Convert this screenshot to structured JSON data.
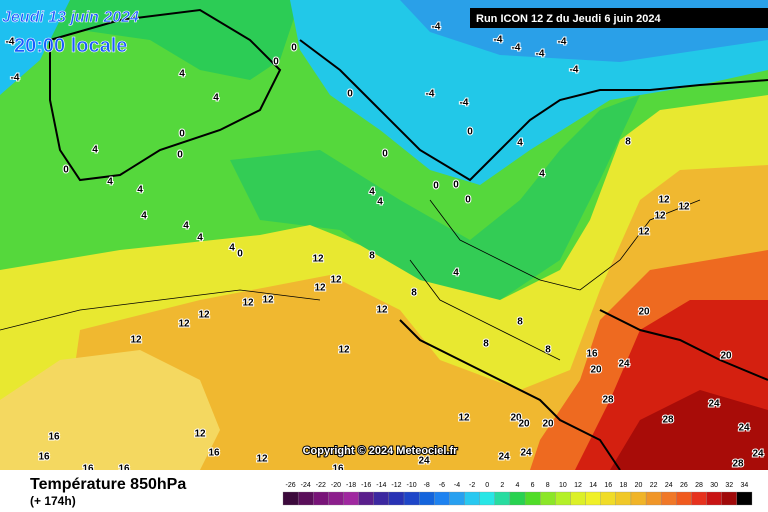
{
  "header": {
    "date": "Jeudi 13 juin 2024",
    "time": "20:00 locale",
    "run": "Run ICON 12 Z du Jeudi 6 juin 2024"
  },
  "copyright": "Copyright © 2024 Meteociel.fr",
  "footer": {
    "title": "Température 850hPa",
    "lead": "(+ 174h)"
  },
  "scale": {
    "labels": [
      -26,
      -24,
      -22,
      -20,
      -18,
      -16,
      -14,
      -12,
      -10,
      -8,
      -6,
      -4,
      -2,
      0,
      2,
      4,
      6,
      8,
      10,
      12,
      14,
      16,
      18,
      20,
      22,
      24,
      26,
      28,
      30,
      32,
      34
    ],
    "colors": [
      "#3c0a3c",
      "#5a0f5a",
      "#781478",
      "#8c1e8c",
      "#a028a0",
      "#5a1e8c",
      "#3c28a0",
      "#2832b4",
      "#1e46c8",
      "#1464dc",
      "#1e82f0",
      "#28a0f0",
      "#28c8f0",
      "#28e6e6",
      "#28dca0",
      "#28d250",
      "#50dc28",
      "#8ce628",
      "#b4f028",
      "#dcf028",
      "#f0f028",
      "#f0dc28",
      "#f0c828",
      "#f0b428",
      "#f09628",
      "#f07828",
      "#f05a1e",
      "#e6321e",
      "#c81414",
      "#a00a0a",
      "#000000"
    ]
  },
  "map_labels": [
    -4,
    -4,
    4,
    4,
    4,
    4,
    4,
    4,
    4,
    4,
    4,
    0,
    0,
    0,
    0,
    0,
    0,
    0,
    0,
    -4,
    -4,
    -4,
    -4,
    -4,
    -4,
    -4,
    -4,
    0,
    0,
    0,
    0,
    4,
    4,
    8,
    12,
    12,
    12,
    12,
    4,
    4,
    8,
    12,
    12,
    12,
    12,
    12,
    12,
    12,
    12,
    12,
    12,
    8,
    4,
    8,
    8,
    8,
    16,
    20,
    24,
    20,
    20,
    28,
    24,
    28,
    24,
    28,
    24,
    20,
    20,
    20,
    12,
    24,
    24,
    24,
    16,
    12,
    16,
    12,
    16,
    16,
    16,
    16
  ]
}
